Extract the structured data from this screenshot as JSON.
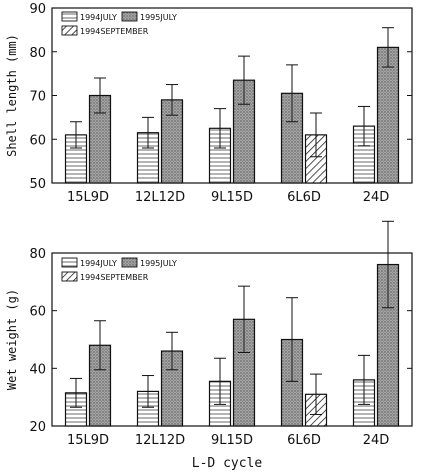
{
  "colors": {
    "july1994": "#ffffff",
    "july1995": "#9a9a9a",
    "sep1994": "#ffffff",
    "ink": "#111111"
  },
  "xlabel": "L-D cycle",
  "chart_data": [
    {
      "type": "bar",
      "ylabel": "Shell length (mm)",
      "ylim": [
        50,
        90
      ],
      "yticks": [
        50,
        60,
        70,
        80,
        90
      ],
      "categories": [
        "15L9D",
        "12L12D",
        "9L15D",
        "6L6D",
        "24D"
      ],
      "legend": [
        "1994JULY",
        "1995JULY",
        "1994SEPTEMBER"
      ],
      "series": [
        {
          "name": "1994JULY",
          "values": [
            61,
            61.5,
            62.5,
            null,
            63
          ],
          "err": [
            3,
            3.5,
            4.5,
            null,
            4.5
          ]
        },
        {
          "name": "1995JULY",
          "values": [
            70,
            69,
            73.5,
            70.5,
            81
          ],
          "err": [
            4,
            3.5,
            5.5,
            6.5,
            4.5
          ]
        },
        {
          "name": "1994SEPTEMBER",
          "values": [
            null,
            null,
            null,
            61,
            null
          ],
          "err": [
            null,
            null,
            null,
            5,
            null
          ]
        }
      ]
    },
    {
      "type": "bar",
      "ylabel": "Wet weight (g)",
      "ylim": [
        20,
        80
      ],
      "yticks": [
        20,
        40,
        60,
        80
      ],
      "categories": [
        "15L9D",
        "12L12D",
        "9L15D",
        "6L6D",
        "24D"
      ],
      "legend": [
        "1994JULY",
        "1995JULY",
        "1994SEPTEMBER"
      ],
      "series": [
        {
          "name": "1994JULY",
          "values": [
            31.5,
            32,
            35.5,
            null,
            36
          ],
          "err": [
            5,
            5.5,
            8,
            null,
            8.5
          ]
        },
        {
          "name": "1995JULY",
          "values": [
            48,
            46,
            57,
            50,
            76
          ],
          "err": [
            8.5,
            6.5,
            11.5,
            14.5,
            15
          ]
        },
        {
          "name": "1994SEPTEMBER",
          "values": [
            null,
            null,
            null,
            31,
            null
          ],
          "err": [
            null,
            null,
            null,
            7,
            null
          ]
        }
      ]
    }
  ]
}
